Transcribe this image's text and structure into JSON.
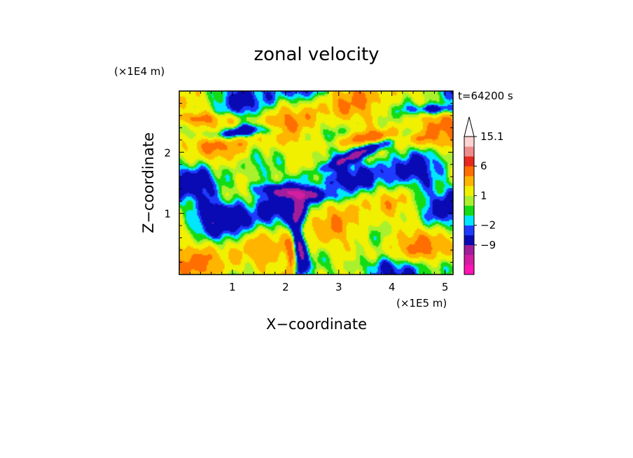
{
  "chart_data": {
    "type": "heatmap",
    "title": "zonal velocity",
    "xlabel": "X−coordinate",
    "ylabel": "Z−coordinate",
    "x_unit": "(×1E5 m)",
    "y_unit": "(×1E4 m)",
    "time_label": "t=64200 s",
    "xlim": [
      0,
      5.15
    ],
    "ylim": [
      0,
      3.0
    ],
    "x_ticks": [
      1,
      2,
      3,
      4,
      5
    ],
    "y_ticks": [
      1,
      2
    ],
    "x_tick_labels": [
      "1",
      "2",
      "3",
      "4",
      "5"
    ],
    "y_tick_labels": [
      "1",
      "2"
    ],
    "colorbar": {
      "levels": [
        -16,
        -12,
        -9,
        -6,
        -2,
        -1,
        0,
        1,
        2,
        4,
        6,
        9,
        12,
        15.1
      ],
      "colors": [
        "#ff14b4",
        "#d21ea0",
        "#a01e9b",
        "#0a0ab4",
        "#1e3cff",
        "#00e6ff",
        "#14dc14",
        "#aaf02d",
        "#f0f000",
        "#ffb400",
        "#ff6e00",
        "#e6281e",
        "#f08c8c",
        "#ffd2d2"
      ],
      "tick_labels": [
        {
          "value": 15.1,
          "label": "15.1"
        },
        {
          "value": 6,
          "label": "6"
        },
        {
          "value": 1,
          "label": "1"
        },
        {
          "value": -2,
          "label": "−2"
        },
        {
          "value": -9,
          "label": "−9"
        }
      ],
      "extend": "max"
    },
    "grid": false
  }
}
